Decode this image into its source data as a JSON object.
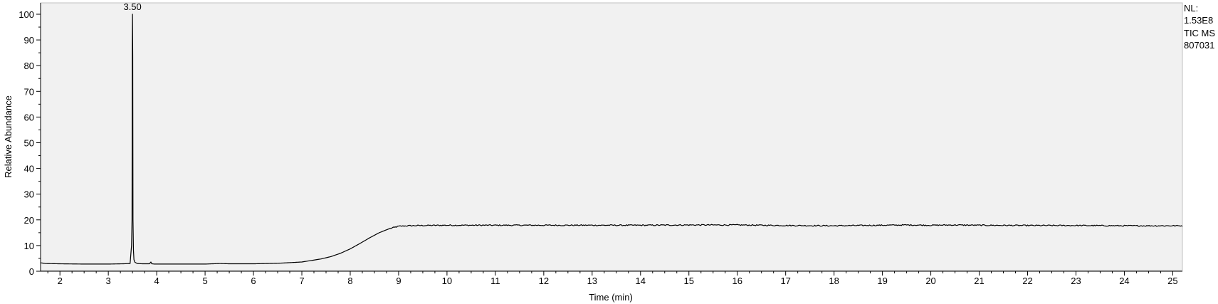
{
  "chart_data": {
    "type": "line",
    "title": "",
    "xlabel": "Time (min)",
    "ylabel": "Relative Abundance",
    "xlim": [
      1.6,
      25.2
    ],
    "ylim": [
      0,
      100
    ],
    "x_ticks": [
      2,
      3,
      4,
      5,
      6,
      7,
      8,
      9,
      10,
      11,
      12,
      13,
      14,
      15,
      16,
      17,
      18,
      19,
      20,
      21,
      22,
      23,
      24,
      25
    ],
    "y_ticks": [
      0,
      10,
      20,
      30,
      40,
      50,
      60,
      70,
      80,
      90,
      100
    ],
    "grid": false,
    "colors": {
      "plot_background": "#f1f1f1",
      "trace": "#000000",
      "axis": "#000000"
    },
    "series": [
      {
        "x": [
          1.6,
          1.7,
          2.0,
          2.5,
          3.0,
          3.3,
          3.45,
          3.48,
          3.49,
          3.495,
          3.5,
          3.505,
          3.51,
          3.52,
          3.53,
          3.55,
          3.6,
          3.7,
          3.85,
          3.88,
          3.9,
          3.95,
          4.5,
          5.0,
          5.3,
          5.5,
          6.0,
          6.5,
          7.0,
          7.2,
          7.4,
          7.6,
          7.8,
          8.0,
          8.2,
          8.4,
          8.6,
          8.8,
          9.0,
          9.2,
          9.5,
          10.0,
          11.0,
          12.0,
          13.0,
          14.0,
          15.0,
          16.0,
          17.0,
          18.0,
          19.0,
          19.5,
          20.0,
          20.5,
          21.0,
          22.0,
          23.0,
          24.0,
          25.0,
          25.2
        ],
        "y": [
          3.3,
          3.0,
          2.9,
          2.8,
          2.8,
          2.9,
          3.0,
          10,
          20,
          84,
          100,
          84,
          20,
          8,
          4.5,
          3.5,
          3.0,
          2.9,
          2.9,
          3.6,
          2.9,
          2.8,
          2.8,
          2.8,
          3.0,
          2.9,
          2.9,
          3.1,
          3.6,
          4.2,
          4.8,
          5.7,
          7.0,
          8.7,
          10.8,
          13.0,
          15.0,
          16.5,
          17.5,
          17.7,
          17.8,
          17.9,
          17.9,
          17.9,
          17.9,
          17.9,
          18.0,
          18.0,
          17.8,
          17.7,
          17.9,
          18.0,
          17.9,
          18.0,
          17.9,
          17.8,
          17.8,
          17.7,
          17.7,
          17.7
        ]
      }
    ],
    "annotations": [
      {
        "text": "3.50",
        "x": 3.5,
        "y": 100
      }
    ]
  },
  "side_info": {
    "nl_label": "NL:",
    "nl_value": "1.53E8",
    "trace_label": "TIC  MS",
    "file_id": "807031"
  }
}
